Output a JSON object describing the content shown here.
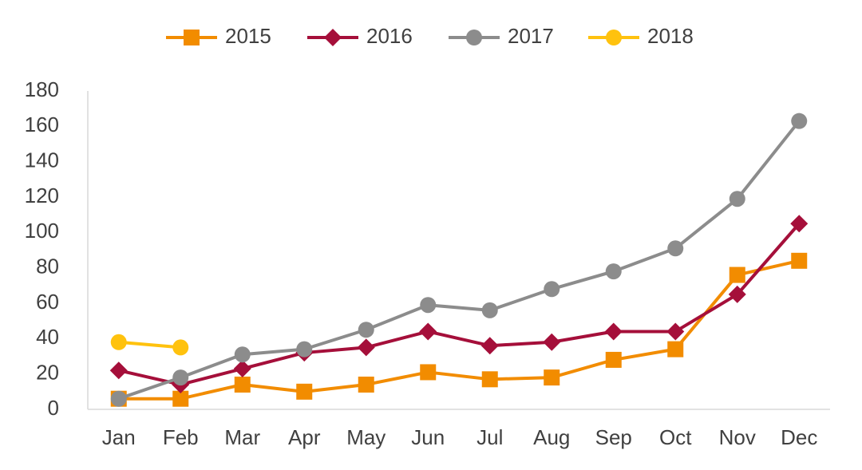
{
  "chart_data": {
    "type": "line",
    "categories": [
      "Jan",
      "Feb",
      "Mar",
      "Apr",
      "May",
      "Jun",
      "Jul",
      "Aug",
      "Sep",
      "Oct",
      "Nov",
      "Dec"
    ],
    "series": [
      {
        "name": "2015",
        "color": "#f28c00",
        "marker": "square",
        "values": [
          6,
          6,
          14,
          10,
          14,
          21,
          17,
          18,
          28,
          34,
          76,
          84
        ]
      },
      {
        "name": "2016",
        "color": "#a50f3a",
        "marker": "diamond",
        "values": [
          22,
          14,
          23,
          32,
          35,
          44,
          36,
          38,
          44,
          44,
          65,
          105
        ]
      },
      {
        "name": "2017",
        "color": "#8c8c8c",
        "marker": "circle",
        "values": [
          6,
          18,
          31,
          34,
          45,
          59,
          56,
          68,
          78,
          91,
          119,
          163
        ]
      },
      {
        "name": "2018",
        "color": "#ffc20e",
        "marker": "circle",
        "values": [
          38,
          35,
          null,
          null,
          null,
          null,
          null,
          null,
          null,
          null,
          null,
          null
        ]
      }
    ],
    "ylim": [
      0,
      180
    ],
    "yticks": [
      0,
      20,
      40,
      60,
      80,
      100,
      120,
      140,
      160,
      180
    ],
    "grid": false,
    "legend": "top"
  }
}
